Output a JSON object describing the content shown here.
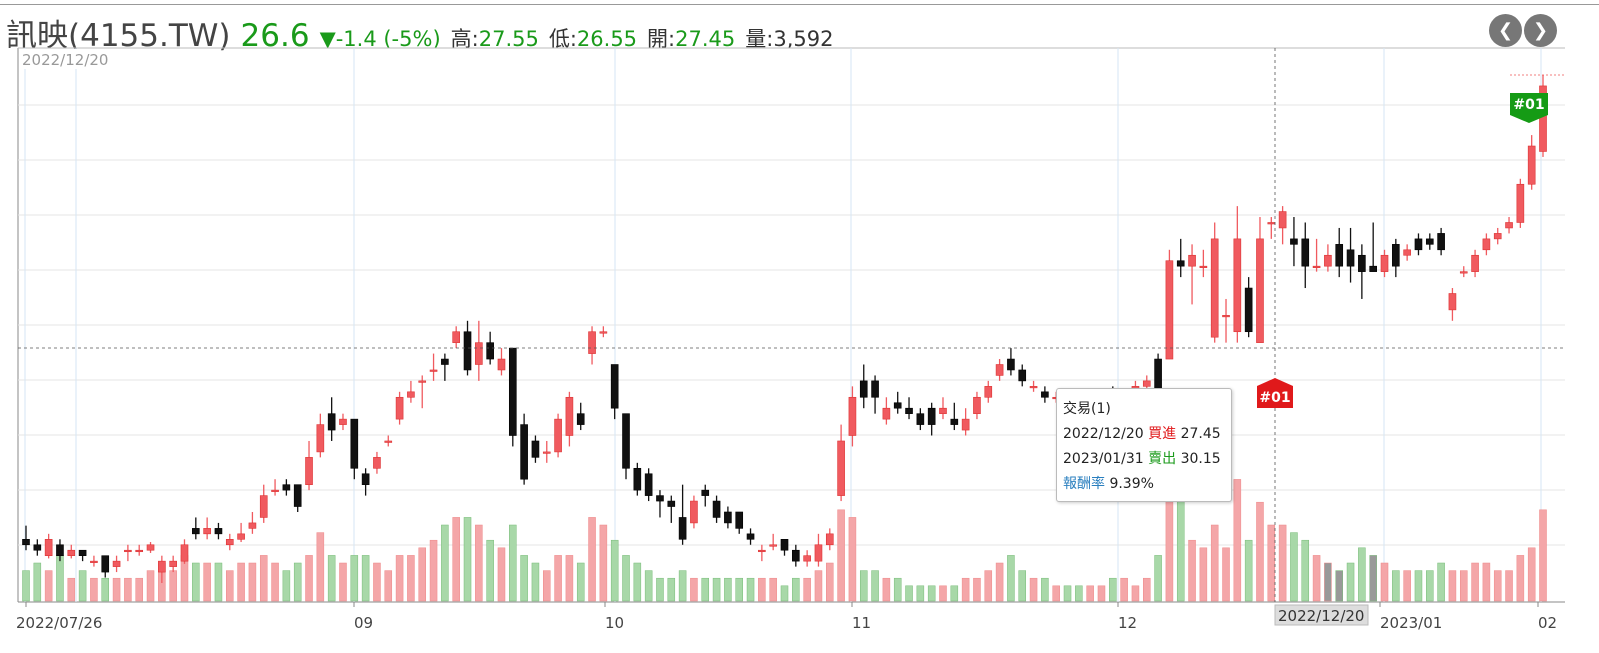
{
  "header": {
    "name": "訊映(4155.TW)",
    "price": "26.6",
    "change": "▼-1.4 (-5%)",
    "high_label": "高:",
    "high_value": "27.55",
    "low_label": "低:",
    "low_value": "26.55",
    "open_label": "開:",
    "open_value": "27.45",
    "volume_label": "量:",
    "volume_value": "3,592",
    "prev_icon": "chevron-left-icon",
    "next_icon": "chevron-right-icon"
  },
  "chart_data": {
    "type": "candlestick",
    "current_date_label": "2022/12/20",
    "crosshair_date_label": "2022/12/20",
    "x_tick_labels": [
      "2022/07/26",
      "09",
      "10",
      "11",
      "12",
      "2023/01",
      "02"
    ],
    "colors": {
      "up": "#f05a5f",
      "down": "#111111",
      "vol_up": "#f4a6a8",
      "vol_down": "#a8d8a8",
      "vol_neutral": "#999999",
      "sell_marker": "#159b15",
      "buy_marker": "#e0191b"
    },
    "markers": [
      {
        "label": "#01",
        "type": "sell",
        "date": "2023/01/31"
      },
      {
        "label": "#01",
        "type": "buy",
        "date": "2022/12/20"
      }
    ],
    "candles": [
      [
        20.45,
        20.35,
        20.7,
        20.25,
        4
      ],
      [
        20.35,
        20.25,
        20.45,
        20.15,
        5
      ],
      [
        20.15,
        20.45,
        20.55,
        20.1,
        4
      ],
      [
        20.35,
        20.15,
        20.45,
        20.05,
        6
      ],
      [
        20.15,
        20.25,
        20.35,
        20.1,
        3
      ],
      [
        20.25,
        20.15,
        20.25,
        20.05,
        4
      ],
      [
        20.05,
        20.05,
        20.15,
        19.95,
        3
      ],
      [
        20.15,
        19.85,
        20.15,
        19.75,
        3
      ],
      [
        19.95,
        20.05,
        20.15,
        19.85,
        3
      ],
      [
        20.25,
        20.25,
        20.35,
        20.05,
        3
      ],
      [
        20.25,
        20.25,
        20.35,
        20.15,
        3
      ],
      [
        20.25,
        20.35,
        20.4,
        20.2,
        4
      ],
      [
        19.85,
        20.05,
        20.15,
        19.65,
        5
      ],
      [
        19.95,
        20.05,
        20.15,
        19.85,
        4
      ],
      [
        20.05,
        20.35,
        20.45,
        20.0,
        6
      ],
      [
        20.65,
        20.55,
        20.85,
        20.45,
        5
      ],
      [
        20.55,
        20.65,
        20.85,
        20.45,
        5
      ],
      [
        20.65,
        20.55,
        20.75,
        20.45,
        5
      ],
      [
        20.35,
        20.45,
        20.55,
        20.25,
        4
      ],
      [
        20.45,
        20.55,
        20.75,
        20.4,
        5
      ],
      [
        20.65,
        20.75,
        20.95,
        20.55,
        5
      ],
      [
        20.85,
        21.25,
        21.45,
        20.75,
        6
      ],
      [
        21.35,
        21.35,
        21.55,
        21.25,
        5
      ],
      [
        21.45,
        21.35,
        21.55,
        21.25,
        4
      ],
      [
        21.45,
        21.05,
        21.45,
        20.95,
        5
      ],
      [
        21.45,
        21.95,
        22.25,
        21.35,
        6
      ],
      [
        22.05,
        22.55,
        22.75,
        21.95,
        9
      ],
      [
        22.75,
        22.45,
        23.05,
        22.25,
        6
      ],
      [
        22.55,
        22.65,
        22.75,
        22.45,
        5
      ],
      [
        22.65,
        21.75,
        22.65,
        21.55,
        6
      ],
      [
        21.65,
        21.45,
        21.75,
        21.25,
        6
      ],
      [
        21.75,
        21.95,
        22.05,
        21.65,
        5
      ],
      [
        22.25,
        22.25,
        22.35,
        22.15,
        4
      ],
      [
        22.65,
        23.05,
        23.15,
        22.55,
        6
      ],
      [
        23.05,
        23.15,
        23.35,
        22.95,
        6
      ],
      [
        23.35,
        23.35,
        23.45,
        22.85,
        7
      ],
      [
        23.55,
        23.55,
        23.85,
        23.35,
        8
      ],
      [
        23.75,
        23.65,
        23.85,
        23.35,
        10
      ],
      [
        24.05,
        24.25,
        24.35,
        23.95,
        11
      ],
      [
        24.25,
        23.55,
        24.45,
        23.45,
        11
      ],
      [
        23.65,
        24.05,
        24.45,
        23.35,
        10
      ],
      [
        24.05,
        23.75,
        24.25,
        23.65,
        8
      ],
      [
        23.55,
        23.75,
        23.95,
        23.45,
        7
      ],
      [
        23.95,
        22.35,
        23.95,
        22.15,
        10
      ],
      [
        22.55,
        21.55,
        22.75,
        21.45,
        6
      ],
      [
        22.25,
        21.95,
        22.35,
        21.85,
        5
      ],
      [
        22.05,
        22.05,
        22.25,
        21.85,
        4
      ],
      [
        22.05,
        22.65,
        22.75,
        21.95,
        6
      ],
      [
        22.35,
        23.05,
        23.15,
        22.15,
        6
      ],
      [
        22.75,
        22.55,
        22.95,
        22.45,
        5
      ],
      [
        23.85,
        24.25,
        24.35,
        23.65,
        11
      ],
      [
        24.25,
        24.25,
        24.35,
        24.15,
        10
      ],
      [
        23.65,
        22.85,
        23.65,
        22.65,
        8
      ],
      [
        22.75,
        21.75,
        22.75,
        21.55,
        6
      ],
      [
        21.75,
        21.35,
        21.85,
        21.25,
        5
      ],
      [
        21.65,
        21.25,
        21.75,
        21.15,
        4
      ],
      [
        21.25,
        21.15,
        21.35,
        20.85,
        3
      ],
      [
        21.15,
        21.05,
        21.25,
        20.75,
        3
      ],
      [
        20.85,
        20.45,
        21.45,
        20.35,
        4
      ],
      [
        20.75,
        21.15,
        21.25,
        20.65,
        3
      ],
      [
        21.35,
        21.25,
        21.45,
        21.05,
        3
      ],
      [
        21.15,
        20.85,
        21.25,
        20.75,
        3
      ],
      [
        20.95,
        20.75,
        21.05,
        20.65,
        3
      ],
      [
        20.95,
        20.65,
        20.95,
        20.55,
        3
      ],
      [
        20.55,
        20.45,
        20.65,
        20.35,
        3
      ],
      [
        20.25,
        20.25,
        20.35,
        20.05,
        3
      ],
      [
        20.35,
        20.35,
        20.55,
        20.25,
        3
      ],
      [
        20.45,
        20.25,
        20.45,
        20.15,
        2
      ],
      [
        20.25,
        20.05,
        20.35,
        19.95,
        3
      ],
      [
        20.05,
        20.15,
        20.25,
        19.95,
        3
      ],
      [
        20.05,
        20.35,
        20.55,
        19.95,
        4
      ],
      [
        20.35,
        20.55,
        20.65,
        20.25,
        5
      ],
      [
        21.25,
        22.25,
        22.55,
        21.15,
        12
      ],
      [
        22.35,
        23.05,
        23.25,
        22.15,
        11
      ],
      [
        23.35,
        23.05,
        23.65,
        22.85,
        4
      ],
      [
        23.35,
        23.05,
        23.45,
        22.75,
        4
      ],
      [
        22.65,
        22.85,
        23.05,
        22.55,
        3
      ],
      [
        22.95,
        22.85,
        23.15,
        22.75,
        3
      ],
      [
        22.85,
        22.75,
        23.05,
        22.65,
        2
      ],
      [
        22.75,
        22.55,
        22.85,
        22.45,
        2
      ],
      [
        22.85,
        22.55,
        22.95,
        22.35,
        2
      ],
      [
        22.75,
        22.85,
        23.05,
        22.65,
        2
      ],
      [
        22.65,
        22.55,
        22.95,
        22.45,
        2
      ],
      [
        22.45,
        22.65,
        22.85,
        22.35,
        3
      ],
      [
        22.75,
        23.05,
        23.15,
        22.65,
        3
      ],
      [
        23.05,
        23.25,
        23.35,
        22.95,
        4
      ],
      [
        23.45,
        23.65,
        23.75,
        23.35,
        5
      ],
      [
        23.75,
        23.55,
        23.95,
        23.45,
        6
      ],
      [
        23.55,
        23.35,
        23.65,
        23.25,
        4
      ],
      [
        23.25,
        23.25,
        23.35,
        23.15,
        3
      ],
      [
        23.15,
        23.05,
        23.25,
        22.95,
        3
      ],
      [
        23.05,
        23.05,
        23.15,
        22.95,
        2
      ],
      [
        23.05,
        22.85,
        23.15,
        22.75,
        2
      ],
      [
        22.95,
        22.85,
        23.05,
        22.75,
        2
      ],
      [
        22.85,
        22.85,
        22.95,
        22.75,
        2
      ],
      [
        22.85,
        22.95,
        23.05,
        22.75,
        2
      ],
      [
        23.15,
        22.95,
        23.25,
        22.85,
        3
      ],
      [
        23.05,
        23.05,
        23.15,
        22.95,
        3
      ],
      [
        23.15,
        23.25,
        23.35,
        23.05,
        2
      ],
      [
        23.25,
        23.35,
        23.45,
        23.15,
        3
      ],
      [
        23.75,
        23.15,
        23.85,
        23.05,
        6
      ],
      [
        23.75,
        25.55,
        25.75,
        23.75,
        15
      ],
      [
        25.55,
        25.45,
        25.95,
        25.25,
        14
      ],
      [
        25.45,
        25.65,
        25.85,
        24.75,
        8
      ],
      [
        25.45,
        25.45,
        25.75,
        25.25,
        7
      ],
      [
        24.15,
        25.95,
        26.25,
        24.05,
        10
      ],
      [
        24.55,
        24.55,
        24.85,
        24.05,
        7
      ],
      [
        24.25,
        25.95,
        26.55,
        24.05,
        16
      ],
      [
        25.05,
        24.25,
        25.25,
        24.15,
        8
      ],
      [
        24.05,
        25.95,
        26.35,
        24.05,
        13
      ],
      [
        26.25,
        26.25,
        26.35,
        25.95,
        10
      ],
      [
        26.15,
        26.45,
        26.55,
        25.85,
        10
      ],
      [
        25.95,
        25.85,
        26.35,
        25.45,
        9
      ],
      [
        25.95,
        25.45,
        26.25,
        25.05,
        8
      ],
      [
        25.45,
        25.45,
        25.95,
        25.35,
        6
      ],
      [
        25.45,
        25.65,
        25.85,
        25.35,
        5
      ],
      [
        25.85,
        25.45,
        26.15,
        25.25,
        4
      ],
      [
        25.75,
        25.45,
        26.15,
        25.15,
        5
      ],
      [
        25.65,
        25.35,
        25.85,
        24.85,
        7
      ],
      [
        25.45,
        25.35,
        26.25,
        25.35,
        6
      ],
      [
        25.35,
        25.65,
        25.75,
        25.25,
        5
      ],
      [
        25.85,
        25.45,
        25.95,
        25.25,
        4
      ],
      [
        25.65,
        25.75,
        25.85,
        25.55,
        4
      ],
      [
        25.95,
        25.75,
        26.05,
        25.65,
        4
      ],
      [
        25.95,
        25.85,
        26.05,
        25.75,
        4
      ],
      [
        26.05,
        25.75,
        26.15,
        25.65,
        5
      ],
      [
        24.65,
        24.95,
        25.05,
        24.45,
        4
      ],
      [
        25.35,
        25.35,
        25.45,
        25.25,
        4
      ],
      [
        25.35,
        25.65,
        25.75,
        25.25,
        5
      ],
      [
        25.75,
        25.95,
        26.05,
        25.65,
        5
      ],
      [
        25.95,
        26.05,
        26.15,
        25.85,
        4
      ],
      [
        26.15,
        26.25,
        26.35,
        26.05,
        4
      ],
      [
        26.25,
        26.95,
        27.05,
        26.15,
        6
      ],
      [
        26.95,
        27.65,
        27.85,
        26.85,
        7
      ],
      [
        27.55,
        28.75,
        28.95,
        27.45,
        12
      ]
    ],
    "volume_units": "lots"
  },
  "tooltip": {
    "title": "交易(1)",
    "row1_date": "2022/12/20",
    "row1_action": "買進",
    "row1_price": "27.45",
    "row2_date": "2023/01/31",
    "row2_action": "賣出",
    "row2_price": "30.15",
    "row3_label": "報酬率",
    "row3_value": "9.39%"
  }
}
